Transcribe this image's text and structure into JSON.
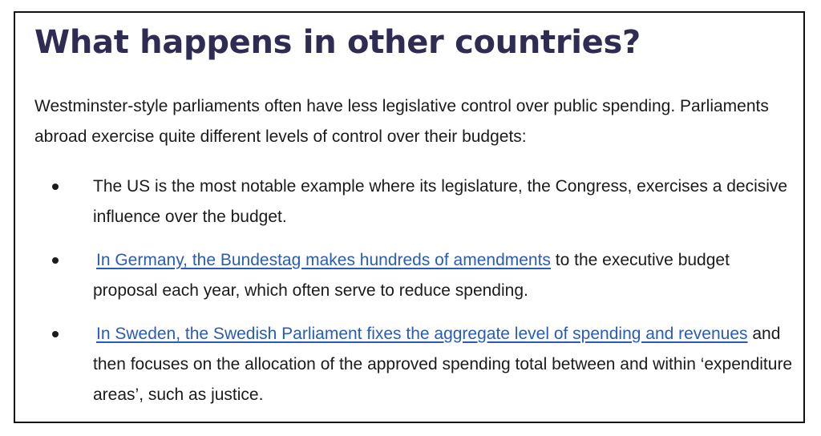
{
  "heading": "What happens in other countries?",
  "intro": "Westminster-style parliaments often have less legislative control over public spending. Parliaments abroad exercise quite different levels of control over their budgets:",
  "bullets": [
    {
      "text": "The US is the most notable example where its legislature, the Congress, exercises a decisive influence over the budget."
    },
    {
      "link": "In Germany, the Bundestag makes hundreds of amendments",
      "text": " to the executive budget proposal each year, which often serve to reduce spending."
    },
    {
      "link": "In Sweden, the Swedish Parliament fixes the aggregate level of spending and revenues",
      "text": " and then focuses on the allocation of the approved spending total between and within ‘expenditure areas’, such as justice."
    }
  ],
  "colors": {
    "heading": "#2f2c54",
    "link": "#2a5bb5",
    "text": "#1b1b1b"
  }
}
